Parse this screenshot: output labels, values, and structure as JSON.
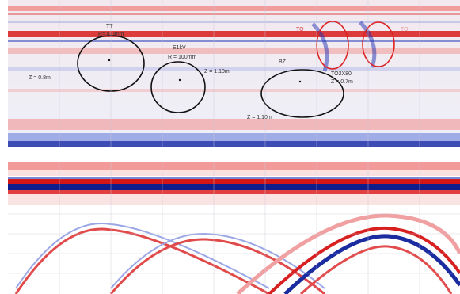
{
  "annotations": [
    "TT",
    "R=100mm",
    "Z = 0.8m",
    "E1kV",
    "R = 100mm",
    "Z = 1.10m",
    "BZ",
    "Z = 1.10m",
    "TO",
    "TO2X80",
    "Z = 0.7m",
    "TO"
  ]
}
